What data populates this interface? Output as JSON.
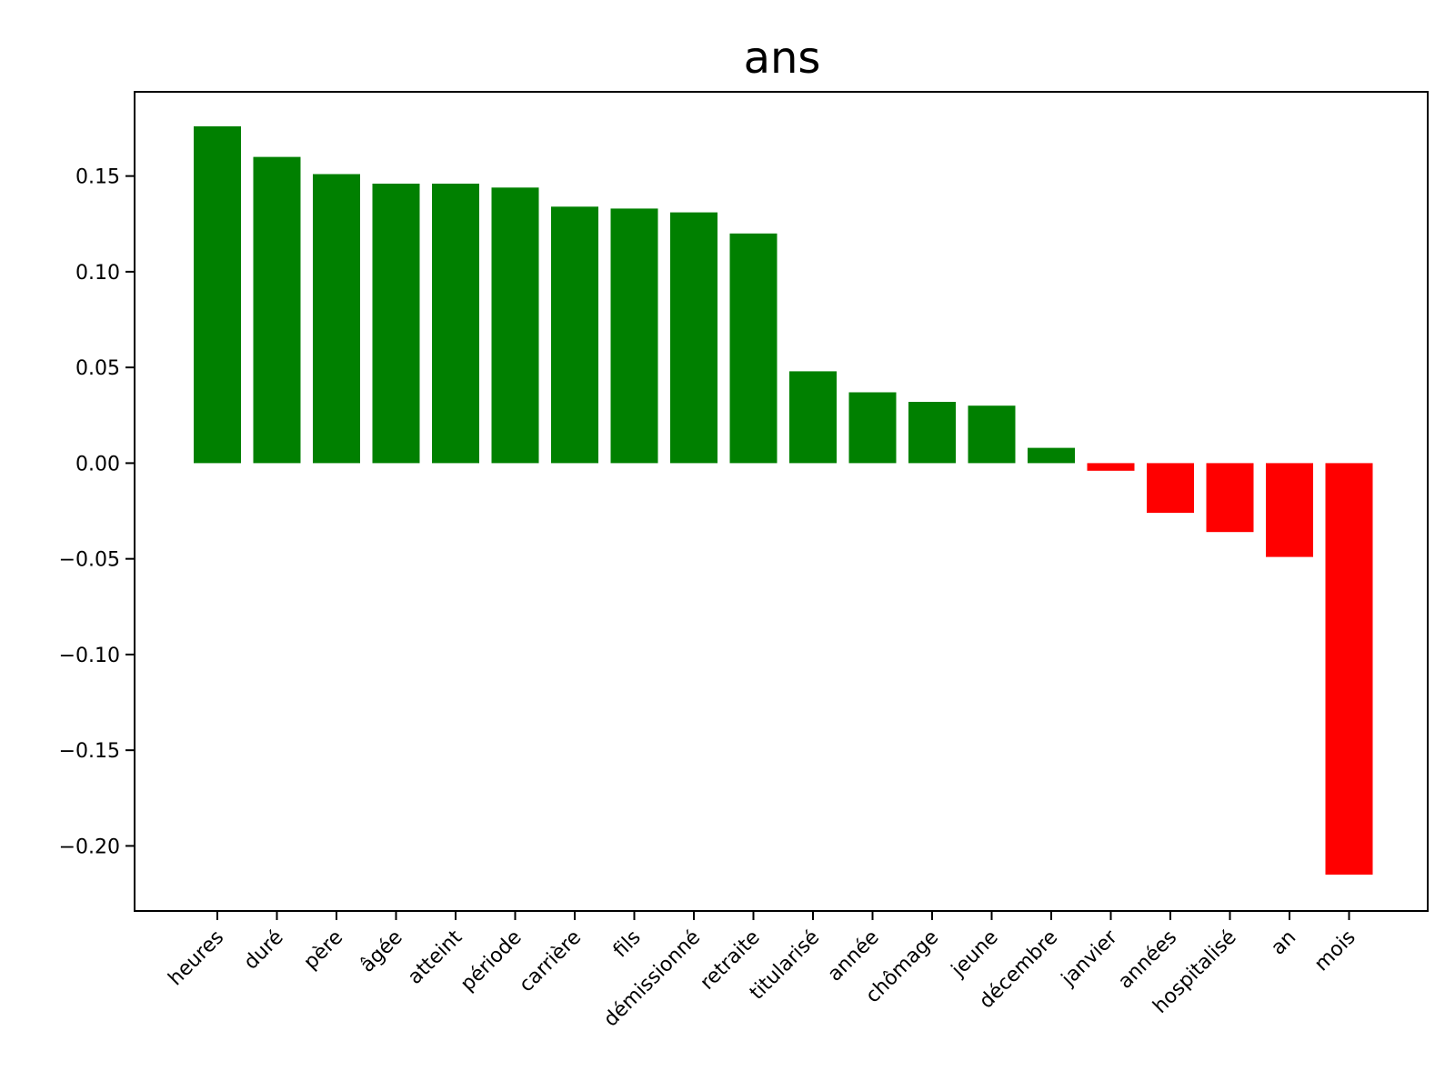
{
  "chart_data": {
    "type": "bar",
    "title": "ans",
    "xlabel": "",
    "ylabel": "",
    "ylim": [
      -0.234,
      0.194
    ],
    "yticks": [
      0.15,
      0.1,
      0.05,
      0.0,
      -0.05,
      -0.1,
      -0.15,
      -0.2
    ],
    "ytick_labels": [
      "0.15",
      "0.10",
      "0.05",
      "0.00",
      "−0.05",
      "−0.10",
      "−0.15",
      "−0.20"
    ],
    "grid": false,
    "positive_color": "#008000",
    "negative_color": "#ff0000",
    "categories": [
      "heures",
      "duré",
      "père",
      "âgée",
      "atteint",
      "période",
      "carrière",
      "fils",
      "démissionné",
      "retraite",
      "titularisé",
      "année",
      "chômage",
      "jeune",
      "décembre",
      "janvier",
      "années",
      "hospitalisé",
      "an",
      "mois"
    ],
    "values": [
      0.176,
      0.16,
      0.151,
      0.146,
      0.146,
      0.144,
      0.134,
      0.133,
      0.131,
      0.12,
      0.048,
      0.037,
      0.032,
      0.03,
      0.008,
      -0.004,
      -0.026,
      -0.036,
      -0.049,
      -0.215
    ]
  }
}
